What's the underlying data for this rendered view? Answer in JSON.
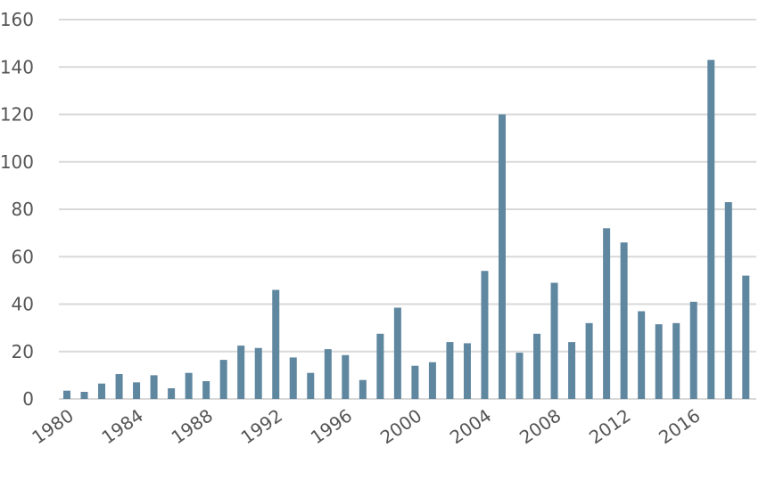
{
  "chart_data": {
    "type": "bar",
    "categories": [
      "1980",
      "1981",
      "1982",
      "1983",
      "1984",
      "1985",
      "1986",
      "1987",
      "1988",
      "1989",
      "1990",
      "1991",
      "1992",
      "1993",
      "1994",
      "1995",
      "1996",
      "1997",
      "1998",
      "1999",
      "2000",
      "2001",
      "2002",
      "2003",
      "2004",
      "2005",
      "2006",
      "2007",
      "2008",
      "2009",
      "2010",
      "2011",
      "2012",
      "2013",
      "2014",
      "2015",
      "2016",
      "2017",
      "2018",
      "2019"
    ],
    "values": [
      3.5,
      3,
      6.5,
      10.5,
      7,
      10,
      4.5,
      11,
      7.5,
      16.5,
      22.5,
      21.5,
      46,
      17.5,
      11,
      21,
      18.5,
      8,
      27.5,
      38.5,
      14,
      15.5,
      24,
      23.5,
      54,
      120,
      19.5,
      27.5,
      49,
      24,
      32,
      72,
      66,
      37,
      31.5,
      32,
      41,
      143,
      83,
      52
    ],
    "ylim": [
      0,
      160
    ],
    "yticks": [
      "0",
      "20",
      "40",
      "60",
      "80",
      "100",
      "120",
      "140",
      "160"
    ],
    "xtick_labels": [
      "1980",
      "1984",
      "1988",
      "1992",
      "1996",
      "2000",
      "2004",
      "2008",
      "2012",
      "2016"
    ],
    "bar_color": "#5f87a0",
    "grid_color": "#d9d9d9",
    "grid": true
  }
}
